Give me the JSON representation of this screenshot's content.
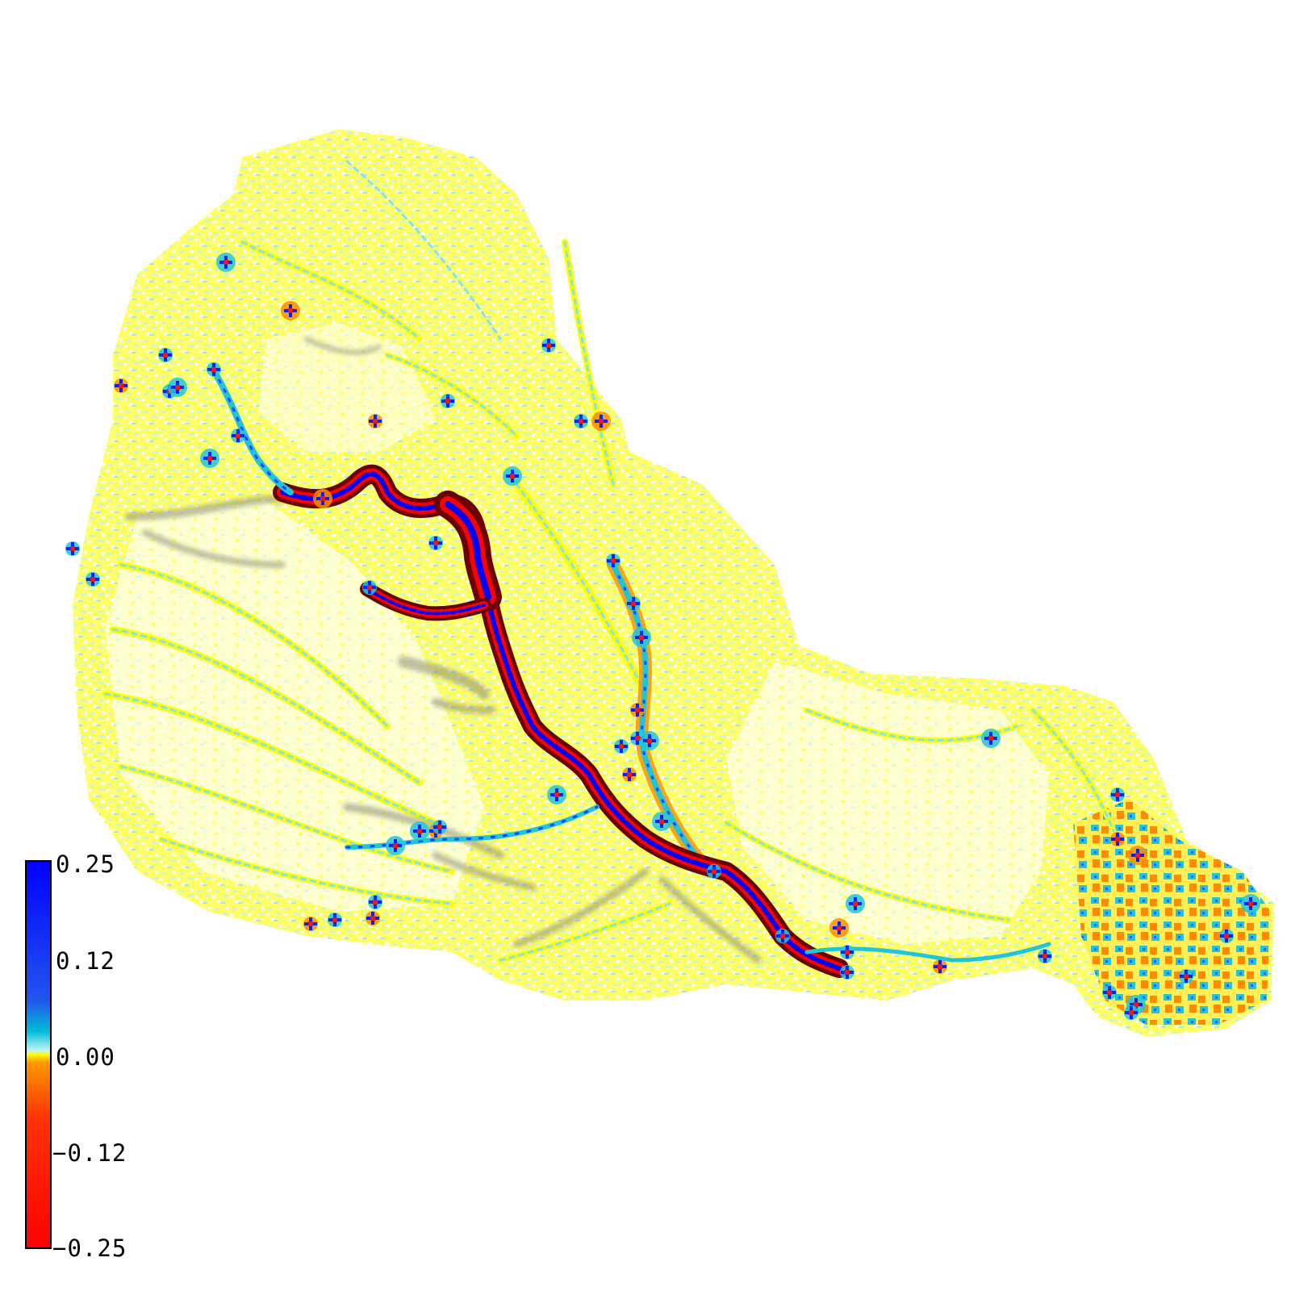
{
  "colorbar": {
    "tick_labels": [
      "0.25",
      "0.12",
      "0.00",
      "−0.12",
      "−0.25"
    ],
    "min": -0.25,
    "max": 0.25,
    "colors": {
      "max": "#0000ff",
      "mid_high": "#3355ee",
      "teal": "#00bcd4",
      "zero_pos": "#bff7f7",
      "zero_neg": "#ffff00",
      "orange": "#ff8c00",
      "red_orange": "#ff3300",
      "min": "#ff0000"
    }
  },
  "map": {
    "palette": {
      "background": "#ffffff",
      "basin_fill": "#ffff00",
      "speckle_cyan": "#bff7f7",
      "channel_dark": "#6a0000",
      "channel_red": "#ff0000",
      "channel_blue": "#0000ff",
      "shadow": "#7a7a6a",
      "pit_blue": "#0022ff",
      "pit_red": "#e81a1a",
      "orange": "#ff8c00",
      "teal": "#22c5d8"
    }
  }
}
